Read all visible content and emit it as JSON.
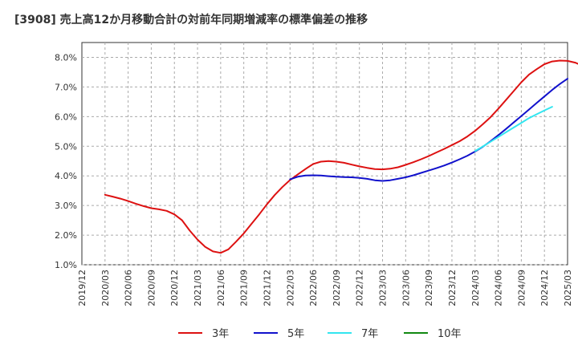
{
  "chart_data": {
    "type": "line",
    "title": "[3908]  売上高12か月移動合計の対前年同期増減率の標準偏差の推移",
    "xlabel": "",
    "ylabel": "",
    "ylim": [
      1.0,
      8.5
    ],
    "grid": true,
    "legend_position": "bottom",
    "x_ticks": [
      "2019/12",
      "2020/03",
      "2020/06",
      "2020/09",
      "2020/12",
      "2021/03",
      "2021/06",
      "2021/09",
      "2021/12",
      "2022/03",
      "2022/06",
      "2022/09",
      "2022/12",
      "2023/03",
      "2023/06",
      "2023/09",
      "2023/12",
      "2024/03",
      "2024/06",
      "2024/09",
      "2024/12",
      "2025/03"
    ],
    "y_ticks": [
      1.0,
      2.0,
      3.0,
      4.0,
      5.0,
      6.0,
      7.0,
      8.0
    ],
    "y_tick_labels": [
      "1.0%",
      "2.0%",
      "3.0%",
      "4.0%",
      "5.0%",
      "6.0%",
      "7.0%",
      "8.0%"
    ],
    "series": [
      {
        "name": "3年",
        "color": "#dd1111",
        "start": "2020/03",
        "values": [
          3.36,
          3.3,
          3.23,
          3.15,
          3.06,
          2.98,
          2.91,
          2.87,
          2.82,
          2.7,
          2.5,
          2.15,
          1.85,
          1.6,
          1.45,
          1.4,
          1.52,
          1.78,
          2.06,
          2.38,
          2.7,
          3.04,
          3.35,
          3.62,
          3.86,
          4.05,
          4.23,
          4.4,
          4.48,
          4.5,
          4.48,
          4.44,
          4.38,
          4.32,
          4.27,
          4.23,
          4.22,
          4.24,
          4.29,
          4.37,
          4.46,
          4.56,
          4.67,
          4.79,
          4.91,
          5.04,
          5.17,
          5.33,
          5.52,
          5.74,
          5.98,
          6.26,
          6.56,
          6.86,
          7.16,
          7.42,
          7.6,
          7.77,
          7.86,
          7.89,
          7.88,
          7.82,
          7.71
        ]
      },
      {
        "name": "5年",
        "color": "#1111cc",
        "start": "2022/03",
        "values": [
          3.88,
          3.97,
          4.01,
          4.02,
          4.01,
          3.99,
          3.97,
          3.96,
          3.95,
          3.93,
          3.9,
          3.85,
          3.83,
          3.85,
          3.9,
          3.95,
          4.02,
          4.1,
          4.18,
          4.26,
          4.35,
          4.45,
          4.56,
          4.68,
          4.82,
          4.98,
          5.17,
          5.37,
          5.58,
          5.8,
          6.02,
          6.24,
          6.46,
          6.68,
          6.9,
          7.1,
          7.28
        ]
      },
      {
        "name": "7年",
        "color": "#33e6f0",
        "start": "2024/03",
        "values": [
          4.84,
          4.99,
          5.15,
          5.31,
          5.47,
          5.63,
          5.79,
          5.95,
          6.08,
          6.21,
          6.33
        ]
      },
      {
        "name": "10年",
        "color": "#118811",
        "start": "2024/12",
        "values": []
      }
    ]
  }
}
